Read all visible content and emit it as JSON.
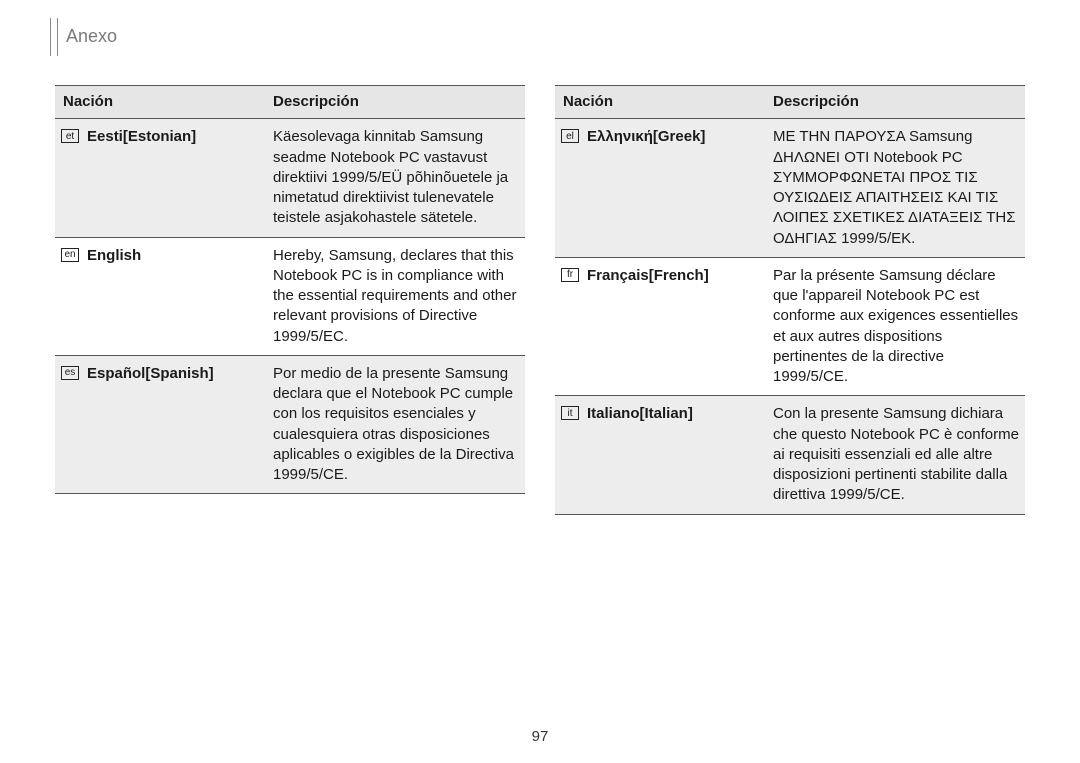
{
  "section_title": "Anexo",
  "page_number": "97",
  "tables": {
    "left": {
      "headers": {
        "nation": "Nación",
        "description": "Descripción"
      },
      "rows": [
        {
          "code": "et",
          "nation": "Eesti[Estonian]",
          "desc": "Käesolevaga kinnitab Samsung seadme Notebook PC vastavust direktiivi 1999/5/EÜ põhinõuetele ja nimetatud direktiivist tulenevatele teistele asjakohastele sätetele.",
          "shaded": true
        },
        {
          "code": "en",
          "nation": "English",
          "desc": "Hereby, Samsung, declares that this Notebook PC is in compliance with the essential requirements and other relevant provisions of Directive 1999/5/EC.",
          "shaded": false
        },
        {
          "code": "es",
          "nation": "Español[Spanish]",
          "desc": "Por medio de la presente Samsung declara que el Notebook PC cumple con los requisitos esenciales y cualesquiera otras disposiciones aplicables o exigibles de la Directiva 1999/5/CE.",
          "shaded": true
        }
      ]
    },
    "right": {
      "headers": {
        "nation": "Nación",
        "description": "Descripción"
      },
      "rows": [
        {
          "code": "el",
          "nation": "Ελληνική[Greek]",
          "desc": "ΜΕ ΤΗΝ ΠΑΡΟΥΣΑ Samsung ΔΗΛΩΝΕΙ ΟΤΙ Notebook PC ΣΥΜΜΟΡΦΩΝΕΤΑΙ ΠΡΟΣ ΤΙΣ ΟΥΣΙΩΔΕΙΣ ΑΠΑΙΤΗΣΕΙΣ ΚΑΙ ΤΙΣ ΛΟΙΠΕΣ ΣΧΕΤΙΚΕΣ ΔΙΑΤΑΞΕΙΣ ΤΗΣ ΟΔΗΓΙΑΣ 1999/5/ΕΚ.",
          "shaded": true
        },
        {
          "code": "fr",
          "nation": "Français[French]",
          "desc": "Par la présente Samsung déclare que l'appareil Notebook PC est conforme aux exigences essentielles et aux autres dispositions pertinentes de la directive 1999/5/CE.",
          "shaded": false
        },
        {
          "code": "it",
          "nation": "Italiano[Italian]",
          "desc": "Con la presente Samsung dichiara che questo Notebook PC è conforme ai requisiti essenziali ed alle altre disposizioni pertinenti stabilite dalla direttiva 1999/5/CE.",
          "shaded": true
        }
      ]
    }
  },
  "colors": {
    "header_bg": "#e6e6e6",
    "shaded_bg": "#ededed",
    "border": "#555555",
    "title_color": "#7a7a7a"
  }
}
